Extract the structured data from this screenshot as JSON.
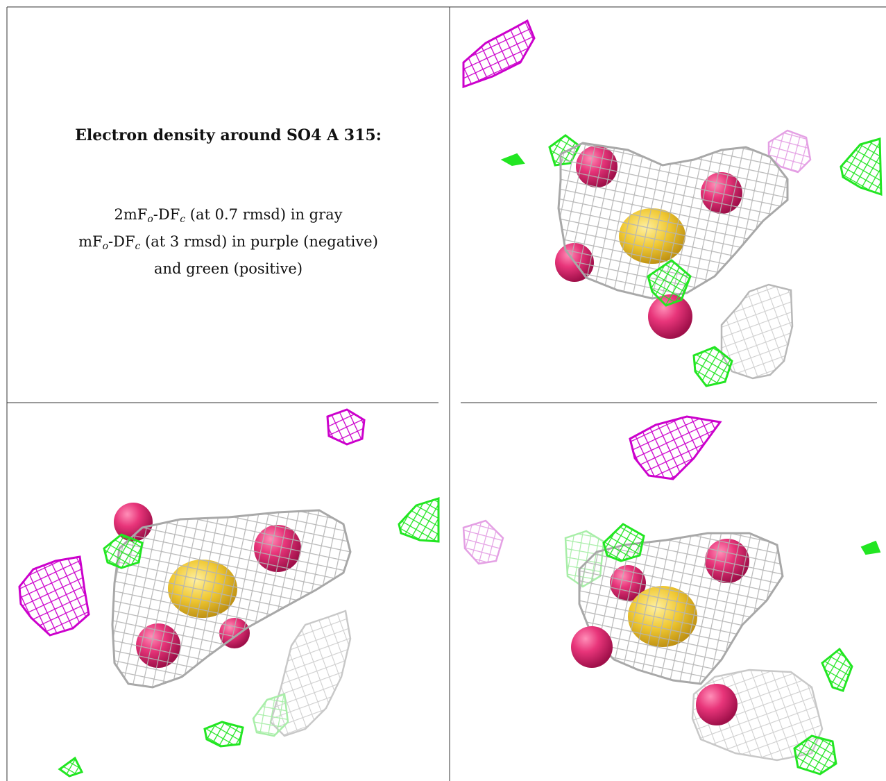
{
  "caption": {
    "title": "Electron density around SO4 A 315:",
    "line1": {
      "a": "2mF",
      "sub1": "o",
      "b": "-DF",
      "sub2": "c",
      "c": " (at 0.7 rmsd) in gray"
    },
    "line2": {
      "a": "mF",
      "sub1": "o",
      "b": "-DF",
      "sub2": "c",
      "c": " (at 3 rmsd) in purple (negative)"
    },
    "line3": "and green (positive)"
  },
  "colors": {
    "gray_mesh": "#b4b4b4",
    "negative_mesh": "#cc00cc",
    "negative_mesh_faded": "#e4a0e4",
    "positive_mesh": "#22e622",
    "positive_mesh_faded": "#a8eea8",
    "oxygen": "#e8357a",
    "sulfur": "#f0c832",
    "border": "#333333"
  },
  "panels": [
    {
      "name": "view-top-right"
    },
    {
      "name": "view-bottom-left"
    },
    {
      "name": "view-bottom-right"
    }
  ]
}
